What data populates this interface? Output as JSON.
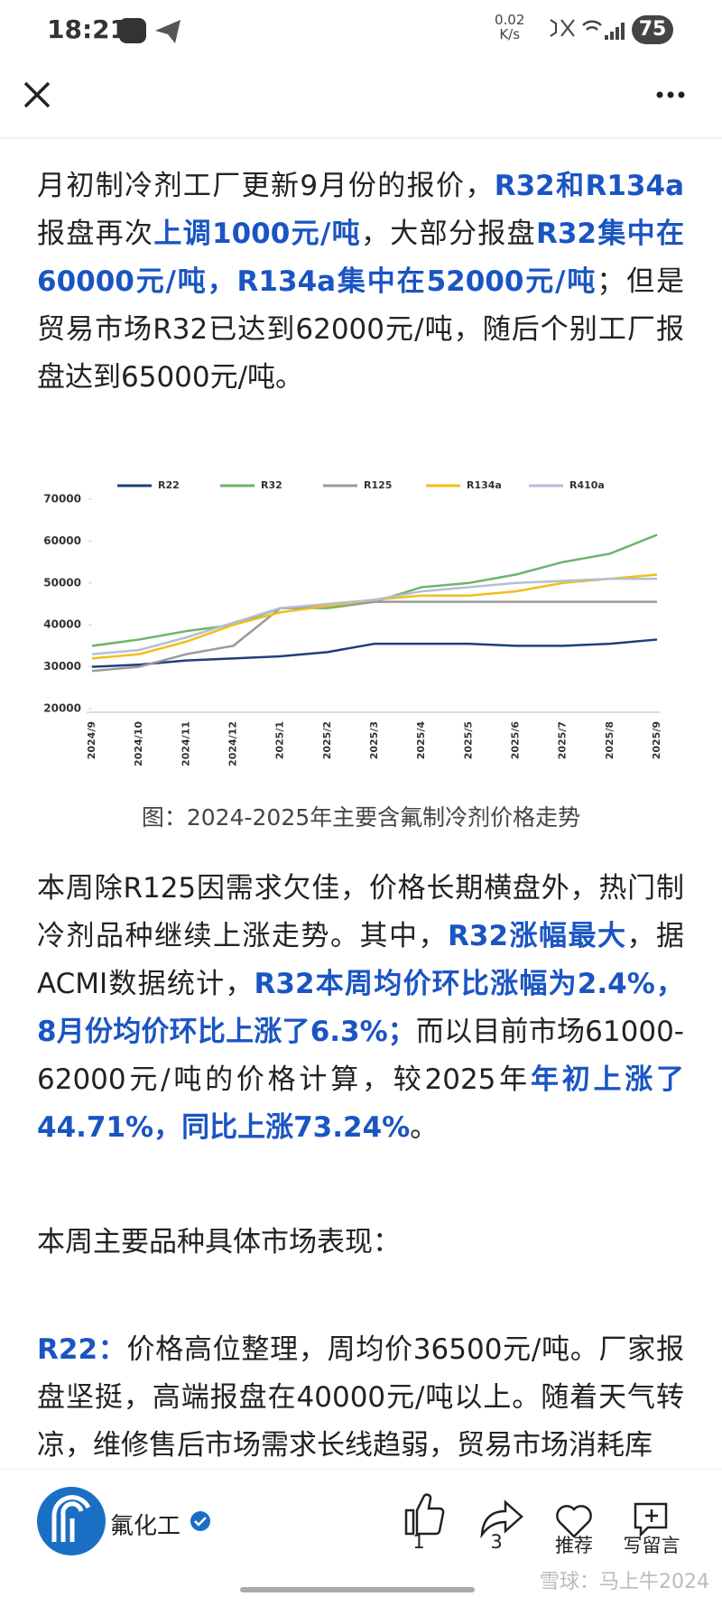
{
  "status_bar": {
    "time": "18:21",
    "speed": "0.02",
    "speed_unit": "K/s",
    "battery": "75"
  },
  "paragraphs": [
    [
      {
        "text": "月初制冷剂工厂更新9月份的报价，"
      },
      {
        "text": "R32和R134a",
        "bold": true
      },
      {
        "text": "报盘再次"
      },
      {
        "text": "上调1000元/吨",
        "bold": true
      },
      {
        "text": "，大部分报盘"
      },
      {
        "text": "R32集中在60000元/吨，R134a集中在52000元/吨",
        "bold": true
      },
      {
        "text": "；但是贸易市场R32已达到62000元/吨，随后个别工厂报盘达到65000元/吨。"
      }
    ],
    [
      {
        "text": "本周除R125因需求欠佳，价格长期横盘外，热门制冷剂品种继续上涨走势。其中，"
      },
      {
        "text": "R32涨幅最大",
        "bold": true
      },
      {
        "text": "，据ACMI数据统计，"
      },
      {
        "text": "R32本周均价环比涨幅为2.4%，8月份均价环比上涨了6.3%；",
        "bold": true
      },
      {
        "text": "而以目前市场61000-62000元/吨的价格计算，较2025年"
      },
      {
        "text": "年初上涨了44.71%，同比上涨73.24%",
        "bold": true
      },
      {
        "text": "。"
      }
    ],
    [
      {
        "text": "本周主要品种具体市场表现："
      }
    ],
    [
      {
        "text": "R22：",
        "bold": true
      },
      {
        "text": "价格高位整理，周均价36500元/吨。厂家报盘坚挺，高端报盘在40000元/吨以上。随着天气转凉，维修售后市场需求长线趋弱，贸易市场消耗库"
      }
    ]
  ],
  "chart_data": {
    "type": "line",
    "categories": [
      "2024/9",
      "2024/10",
      "2024/11",
      "2024/12",
      "2025/1",
      "2025/2",
      "2025/3",
      "2025/4",
      "2025/5",
      "2025/6",
      "2025/7",
      "2025/8",
      "2025/9"
    ],
    "series": [
      {
        "name": "R22",
        "color": "#1f3f7a",
        "values": [
          30000,
          30500,
          31500,
          32000,
          32500,
          33500,
          35500,
          35500,
          35500,
          35000,
          35000,
          35500,
          36500
        ]
      },
      {
        "name": "R32",
        "color": "#6db36d",
        "values": [
          35000,
          36500,
          38500,
          40000,
          44000,
          44000,
          45500,
          49000,
          50000,
          52000,
          55000,
          57000,
          61500
        ]
      },
      {
        "name": "R125",
        "color": "#9a9a9a",
        "values": [
          29000,
          30000,
          33000,
          35000,
          44000,
          44500,
          45500,
          45500,
          45500,
          45500,
          45500,
          45500,
          45500
        ]
      },
      {
        "name": "R134a",
        "color": "#f2be1a",
        "values": [
          32000,
          33000,
          36000,
          40000,
          43000,
          44500,
          46000,
          47000,
          47000,
          48000,
          50000,
          51000,
          52000
        ]
      },
      {
        "name": "R410a",
        "color": "#b4bdd6",
        "values": [
          33000,
          34000,
          37000,
          40500,
          44000,
          45000,
          46000,
          48000,
          49000,
          50000,
          50500,
          51000,
          51000
        ]
      }
    ],
    "ylim": [
      20000,
      70000
    ],
    "yticks": [
      20000,
      30000,
      40000,
      50000,
      60000,
      70000
    ]
  },
  "caption": "图：2024-2025年主要含氟制冷剂价格走势",
  "footer": {
    "author": "氟化工",
    "likes": "1",
    "shares": "3",
    "recommend": "推荐",
    "comment": "写留言"
  },
  "watermark": "雪球：马上牛2024"
}
